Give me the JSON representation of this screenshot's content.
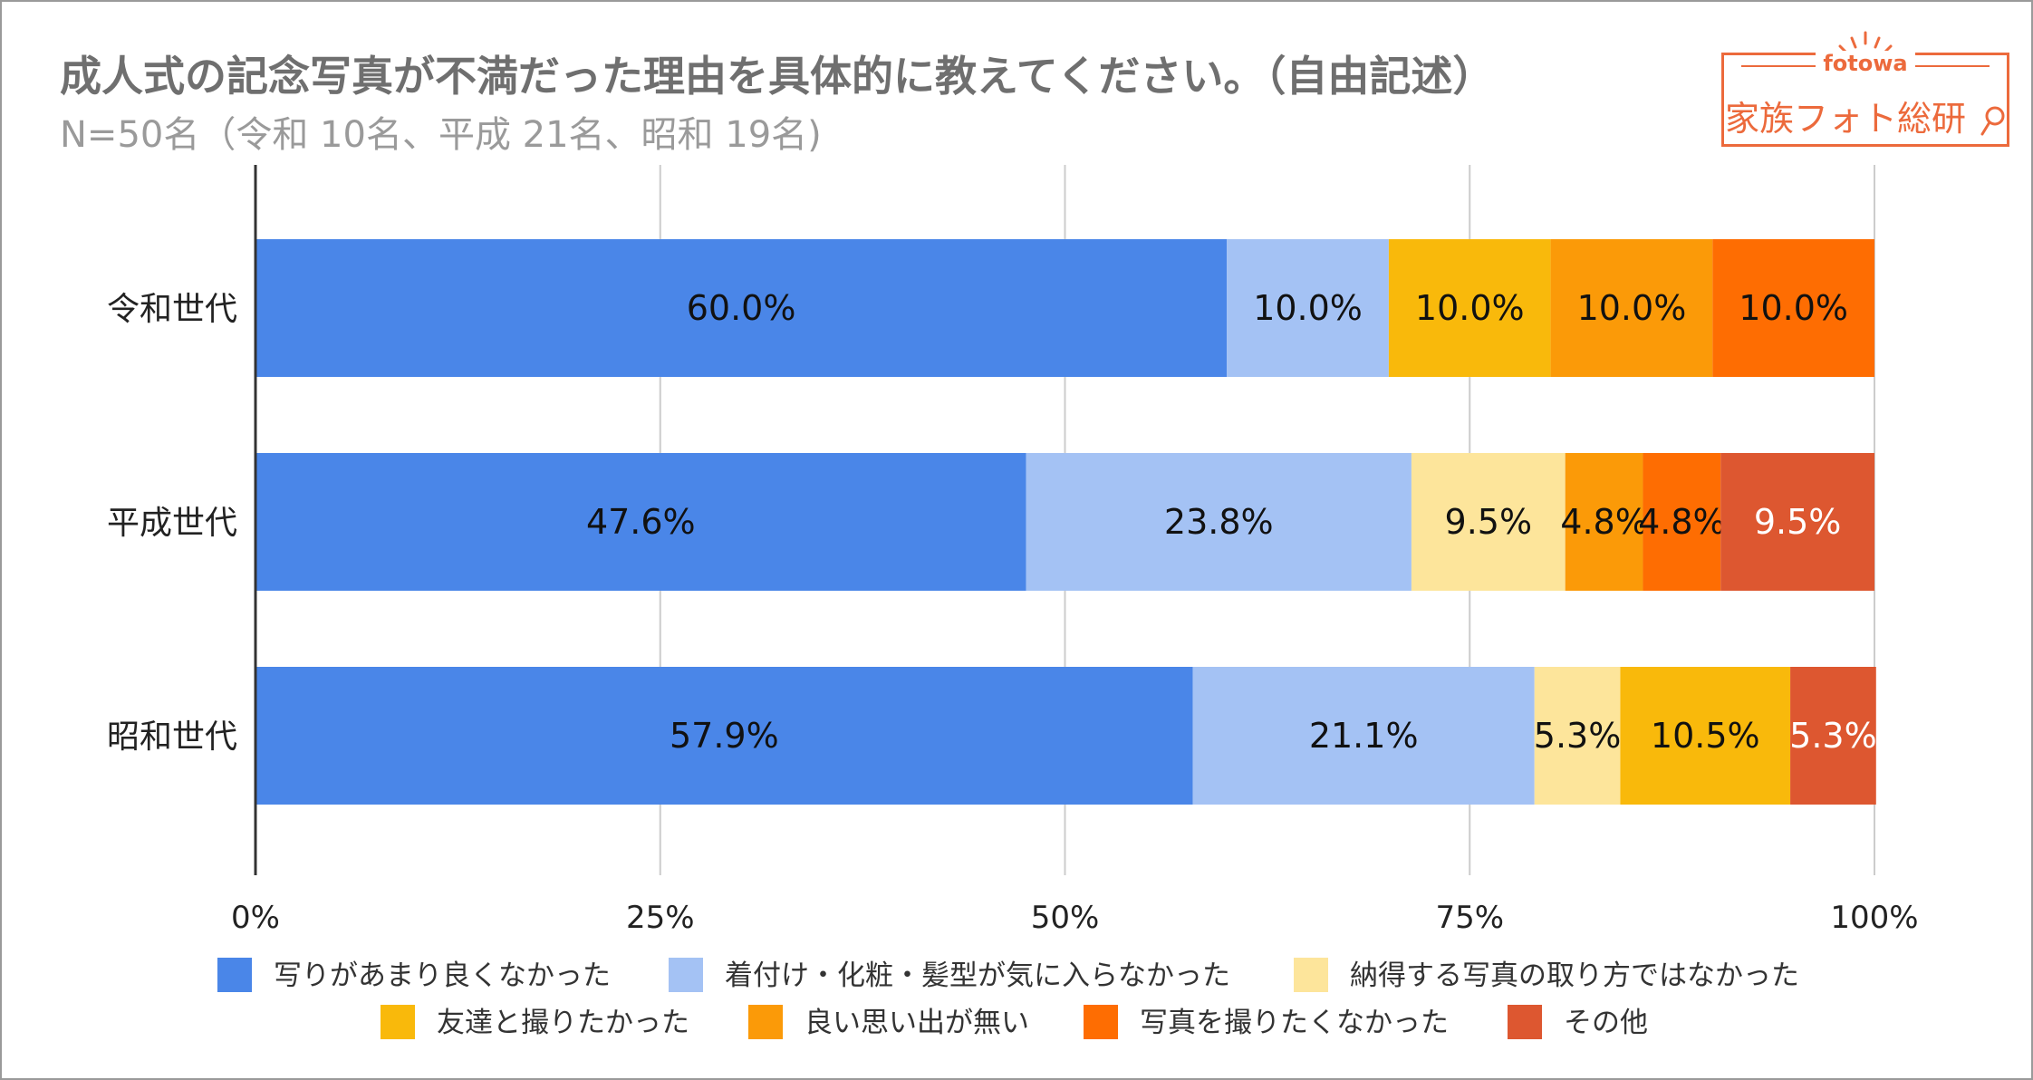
{
  "title": "成人式の記念写真が不満だった理由を具体的に教えてください。（自由記述）",
  "subtitle": "N=50名（令和 10名、平成 21名、昭和 19名)",
  "logo": {
    "word": "fotowa",
    "brand": "家族フォト総研",
    "icon": "magnifier-icon"
  },
  "colors": {
    "title": "#6f6f6f",
    "subtitle": "#9a9a9a",
    "logo": "#ec6a3c",
    "grid": "#cccccc",
    "axis": "#333333"
  },
  "chart_data": {
    "type": "bar",
    "orientation": "horizontal",
    "stacked": true,
    "normalized": true,
    "categories": [
      "令和世代",
      "平成世代",
      "昭和世代"
    ],
    "series": [
      {
        "name": "写りがあまり良くなかった",
        "color": "#4a86e8",
        "values": [
          60.0,
          47.6,
          57.9
        ],
        "labels": [
          "60.0%",
          "47.6%",
          "57.9%"
        ]
      },
      {
        "name": "着付け・化粧・髪型が気に入らなかった",
        "color": "#a4c2f4",
        "values": [
          10.0,
          23.8,
          21.1
        ],
        "labels": [
          "10.0%",
          "23.8%",
          "21.1%"
        ]
      },
      {
        "name": "納得する写真の取り方ではなかった",
        "color": "#fde59b",
        "values": [
          0,
          9.5,
          5.3
        ],
        "labels": [
          "",
          "9.5%",
          "5.3%"
        ]
      },
      {
        "name": "友達と撮りたかった",
        "color": "#f9b90b",
        "values": [
          10.0,
          0,
          10.5
        ],
        "labels": [
          "10.0%",
          "",
          "10.5%"
        ]
      },
      {
        "name": "良い思い出が無い",
        "color": "#fb9a08",
        "values": [
          10.0,
          4.8,
          0
        ],
        "labels": [
          "10.0%",
          "4.8%",
          ""
        ]
      },
      {
        "name": "写真を撮りたくなかった",
        "color": "#fe6d02",
        "values": [
          10.0,
          4.8,
          0
        ],
        "labels": [
          "10.0%",
          "4.8%",
          ""
        ]
      },
      {
        "name": "その他",
        "color": "#dd5730",
        "values": [
          0,
          9.5,
          5.3
        ],
        "labels": [
          "",
          "9.5%",
          "5.3%"
        ]
      }
    ],
    "xlim": [
      0,
      100
    ],
    "xticks": [
      0,
      25,
      50,
      75,
      100
    ],
    "xtick_labels": [
      "0%",
      "25%",
      "50%",
      "75%",
      "100%"
    ],
    "grid": true,
    "legend_position": "bottom"
  }
}
